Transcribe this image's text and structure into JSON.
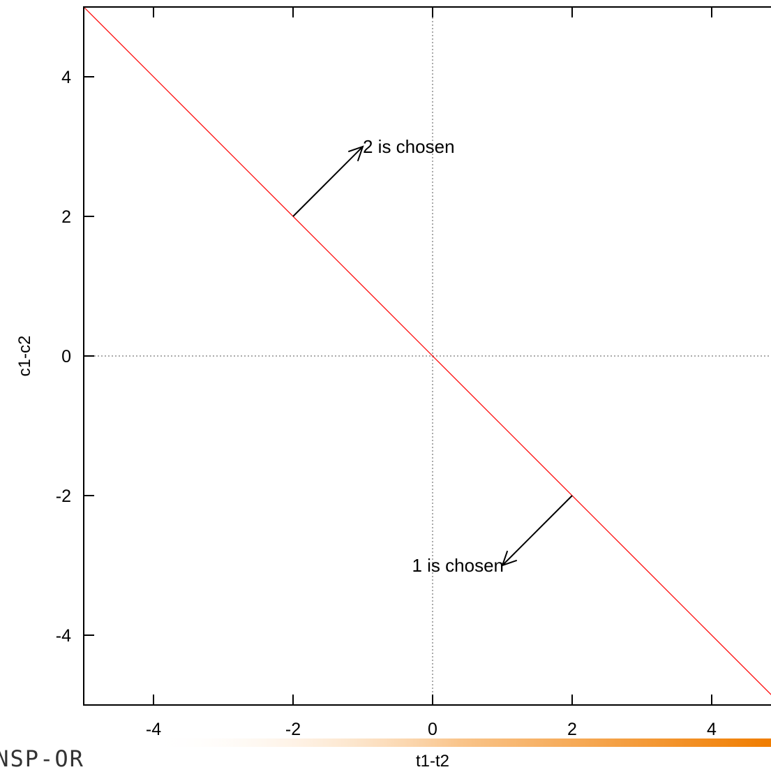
{
  "chart_data": {
    "type": "line",
    "xlabel": "t1-t2",
    "ylabel": "c1-c2",
    "xlim": [
      -5,
      5
    ],
    "ylim": [
      -5,
      5
    ],
    "x_ticks": [
      -4,
      -2,
      0,
      2,
      4
    ],
    "y_ticks": [
      -4,
      -2,
      0,
      2,
      4
    ],
    "zero_lines": true,
    "series": [
      {
        "color": "#ff0000",
        "x": [
          -5,
          5
        ],
        "y": [
          5,
          -5
        ]
      }
    ],
    "annotations": [
      {
        "text": "2 is chosen",
        "arrow_from": [
          -2,
          2
        ],
        "arrow_to": [
          -1,
          3
        ]
      },
      {
        "text": "1 is chosen",
        "arrow_from": [
          2,
          -2
        ],
        "arrow_to": [
          1,
          -3
        ]
      }
    ]
  },
  "logo": {
    "text": "ANSP-OR",
    "bar_color": "#f07d00"
  },
  "colors": {
    "line": "#ff0000",
    "axis": "#000000",
    "zero_line": "#555555"
  }
}
